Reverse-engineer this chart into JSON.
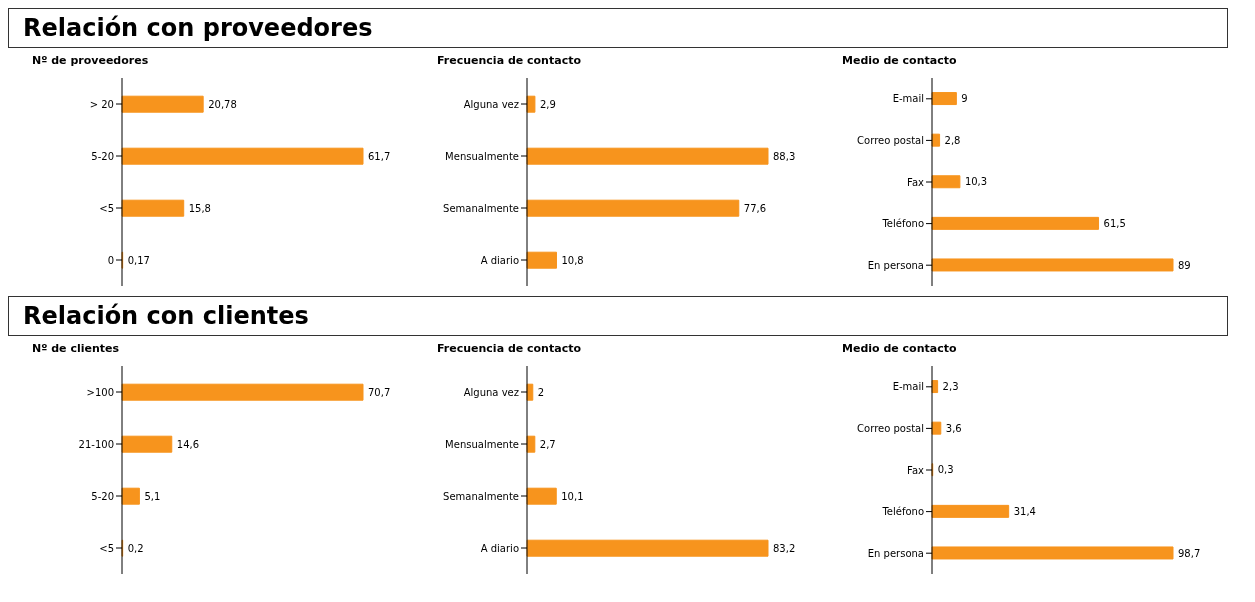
{
  "chart_data": [
    {
      "type": "other",
      "title": "Relación con proveedores"
    },
    {
      "type": "bar",
      "orientation": "horizontal",
      "title": "Nº de proveedores",
      "categories": [
        "> 20",
        "5-20",
        "<5",
        "0"
      ],
      "values": [
        20.78,
        61.7,
        15.8,
        0.17
      ],
      "value_labels": [
        "20,78",
        "61,7",
        "15,8",
        "0,17"
      ],
      "color": "#f7941d"
    },
    {
      "type": "bar",
      "orientation": "horizontal",
      "title": "Frecuencia de contacto",
      "categories": [
        "Alguna vez",
        "Mensualmente",
        "Semanalmente",
        "A diario"
      ],
      "values": [
        2.9,
        88.3,
        77.6,
        10.8
      ],
      "value_labels": [
        "2,9",
        "88,3",
        "77,6",
        "10,8"
      ],
      "color": "#f7941d"
    },
    {
      "type": "bar",
      "orientation": "horizontal",
      "title": "Medio de contacto",
      "categories": [
        "E-mail",
        "Correo postal",
        "Fax",
        "Teléfono",
        "En persona"
      ],
      "values": [
        9,
        2.8,
        10.3,
        61.5,
        89
      ],
      "value_labels": [
        "9",
        "2,8",
        "10,3",
        "61,5",
        "89"
      ],
      "color": "#f7941d"
    },
    {
      "type": "other",
      "title": "Relación con clientes"
    },
    {
      "type": "bar",
      "orientation": "horizontal",
      "title": "Nº de clientes",
      "categories": [
        ">100",
        "21-100",
        "5-20",
        "<5"
      ],
      "values": [
        70.7,
        14.6,
        5.1,
        0.2
      ],
      "value_labels": [
        "70,7",
        "14,6",
        "5,1",
        "0,2"
      ],
      "color": "#f7941d"
    },
    {
      "type": "bar",
      "orientation": "horizontal",
      "title": "Frecuencia de contacto",
      "categories": [
        "Alguna vez",
        "Mensualmente",
        "Semanalmente",
        "A diario"
      ],
      "values": [
        2,
        2.7,
        10.1,
        83.2
      ],
      "value_labels": [
        "2",
        "2,7",
        "10,1",
        "83,2"
      ],
      "color": "#f7941d"
    },
    {
      "type": "bar",
      "orientation": "horizontal",
      "title": "Medio de contacto",
      "categories": [
        "E-mail",
        "Correo postal",
        "Fax",
        "Teléfono",
        "En persona"
      ],
      "values": [
        2.3,
        3.6,
        0.3,
        31.4,
        98.7
      ],
      "value_labels": [
        "2,3",
        "3,6",
        "0,3",
        "31,4",
        "98,7"
      ],
      "color": "#f7941d"
    }
  ]
}
